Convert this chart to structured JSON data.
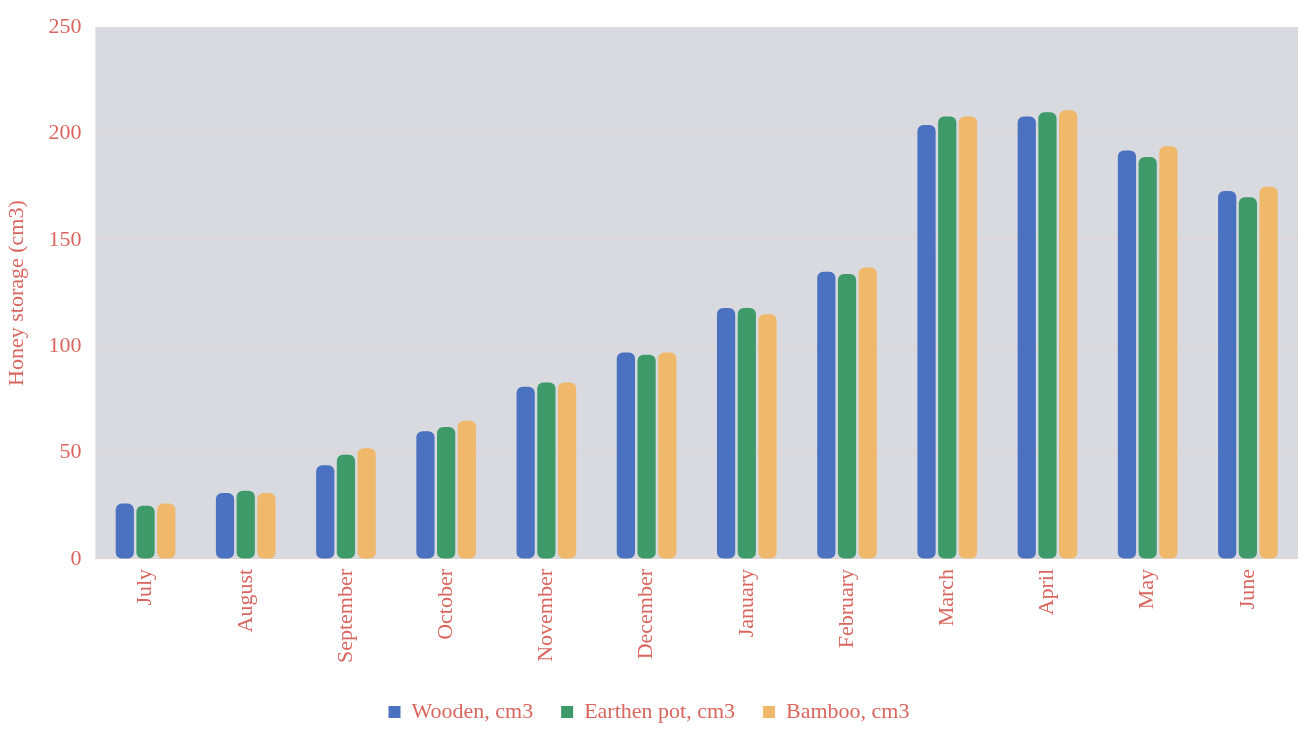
{
  "chart_data": {
    "type": "bar",
    "ylabel": "Honey storage (cm3)",
    "categories": [
      "July",
      "August",
      "September",
      "October",
      "November",
      "December",
      "January",
      "February",
      "March",
      "April",
      "May",
      "June"
    ],
    "series": [
      {
        "name": "Wooden, cm3",
        "color": "#4a72c0",
        "values": [
          26,
          31,
          44,
          60,
          81,
          97,
          118,
          135,
          204,
          208,
          192,
          173
        ]
      },
      {
        "name": "Earthen pot, cm3",
        "color": "#3f9a6a",
        "values": [
          25,
          32,
          49,
          62,
          83,
          96,
          118,
          134,
          208,
          210,
          189,
          170
        ]
      },
      {
        "name": "Bamboo, cm3",
        "color": "#f0b86a",
        "values": [
          26,
          31,
          52,
          65,
          83,
          97,
          115,
          137,
          208,
          211,
          194,
          175
        ]
      }
    ],
    "ylim": [
      0,
      250
    ],
    "yticks": [
      0,
      50,
      100,
      150,
      200,
      250
    ],
    "grid": "y",
    "legend": "bottom"
  }
}
